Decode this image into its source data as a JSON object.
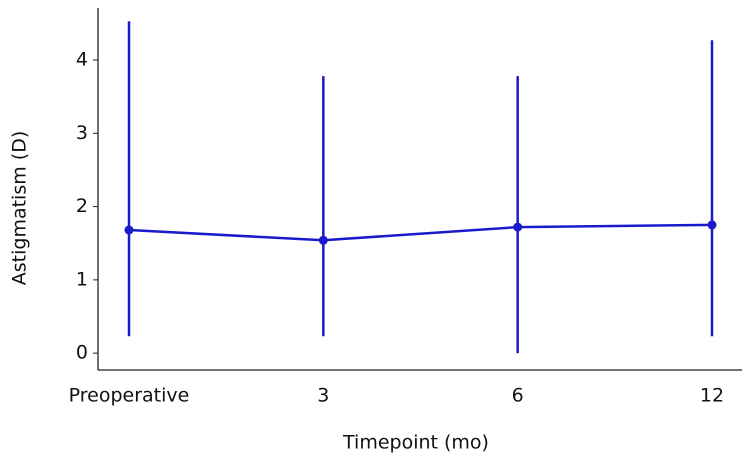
{
  "chart_data": {
    "type": "line",
    "x_label": "Timepoint (mo)",
    "y_label": "Astigmatism (D)",
    "categories": [
      "Preoperative",
      "3",
      "6",
      "12"
    ],
    "series": [
      {
        "color": "#1a1acc",
        "values": [
          1.68,
          1.54,
          1.72,
          1.75
        ],
        "lower": [
          0.23,
          0.23,
          0,
          0.23
        ],
        "upper": [
          4.53,
          3.78,
          3.78,
          4.27
        ]
      }
    ],
    "ylim": [
      -0.23,
      4.71
    ],
    "yticks": [
      0,
      1,
      2,
      3,
      4
    ],
    "grid": false
  }
}
